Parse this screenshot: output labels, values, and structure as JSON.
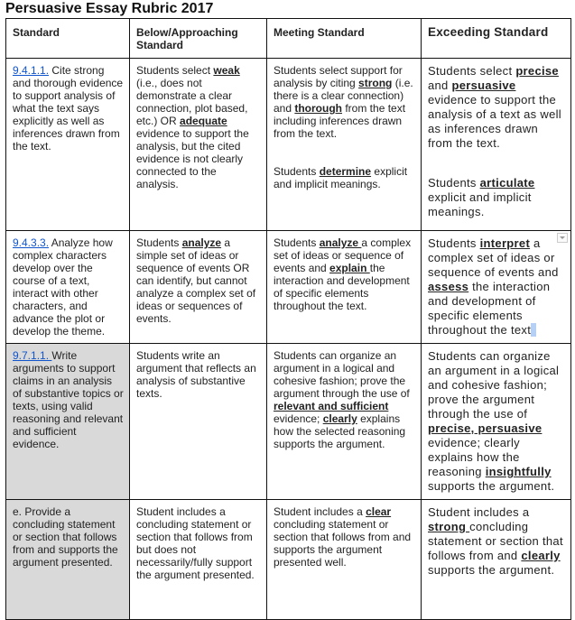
{
  "title": "Persuasive Essay Rubric 2017",
  "headers": [
    "Standard",
    "Below/Approaching Standard",
    "Meeting Standard",
    "Exceeding Standard"
  ],
  "colors": {
    "link": "#1155cc",
    "shaded_cell": "#d9d9d9",
    "selection": "#b6d0f5"
  },
  "rows": [
    {
      "shaded_first": false,
      "cells": [
        [
          [
            {
              "t": "9.4.1.1.",
              "link": true
            },
            {
              "t": " Cite strong and thorough evidence to support analysis of what the text says explicitly as well as inferences drawn from the text."
            }
          ]
        ],
        [
          [
            {
              "t": "Students select "
            },
            {
              "t": "weak",
              "b": true
            },
            {
              "t": " (i.e., does not demonstrate a clear connection, plot based, etc.) OR "
            },
            {
              "t": "adequate",
              "b": true
            },
            {
              "t": " evidence to support the analysis, but the cited evidence is not clearly connected to the analysis."
            }
          ]
        ],
        [
          [
            {
              "t": "Students select support for analysis by citing "
            },
            {
              "t": "strong",
              "b": true
            },
            {
              "t": " (i.e. there is a clear connection) and "
            },
            {
              "t": "thorough",
              "b": true
            },
            {
              "t": " from the text including inferences drawn from the text."
            }
          ],
          [
            {
              "t": "Students "
            },
            {
              "t": "determine",
              "b": true
            },
            {
              "t": " explicit and implicit meanings."
            }
          ]
        ],
        [
          [
            {
              "t": "Students select "
            },
            {
              "t": "precise",
              "b": true
            },
            {
              "t": " and "
            },
            {
              "t": "persuasive ",
              "b": true
            },
            {
              "t": "evidence to support the analysis of a text as well as inferences drawn from the text."
            }
          ],
          [
            {
              "t": "Students "
            },
            {
              "t": "articulate",
              "b": true
            },
            {
              "t": " explicit and implicit meanings."
            }
          ]
        ]
      ]
    },
    {
      "shaded_first": false,
      "cells": [
        [
          [
            {
              "t": "9.4.3.3.",
              "link": true
            },
            {
              "t": " Analyze how complex characters develop over the course of a text, interact with other characters, and advance the plot or develop the theme."
            }
          ]
        ],
        [
          [
            {
              "t": "Students "
            },
            {
              "t": "analyze",
              "b": true
            },
            {
              "t": " a simple set of ideas or sequence of events OR can identify, but cannot analyze a complex set of ideas or sequences of events."
            }
          ]
        ],
        [
          [
            {
              "t": "Students "
            },
            {
              "t": "analyze ",
              "b": true
            },
            {
              "t": "a complex set of ideas or sequence of events and "
            },
            {
              "t": "explain ",
              "b": true
            },
            {
              "t": "the interaction and development of specific elements throughout the text."
            }
          ]
        ],
        [
          [
            {
              "t": "Students "
            },
            {
              "t": "interpret",
              "b": true
            },
            {
              "t": " a complex set of ideas or sequence of events and "
            },
            {
              "t": "assess",
              "b": true
            },
            {
              "t": " the interaction and development of specific elements throughout the text"
            }
          ]
        ]
      ]
    },
    {
      "shaded_first": true,
      "cells": [
        [
          [
            {
              "t": "9.7.1.1. ",
              "link": true
            },
            {
              "t": "Write arguments to support claims in an analysis of substantive topics or texts, using valid reasoning and relevant and sufficient evidence."
            }
          ]
        ],
        [
          [
            {
              "t": "Students write an argument that reflects an analysis of substantive texts."
            }
          ]
        ],
        [
          [
            {
              "t": "Students can organize an argument in a logical and cohesive fashion; prove the argument through the use of "
            },
            {
              "t": "relevant and sufficient",
              "b": true
            },
            {
              "t": " evidence; "
            },
            {
              "t": "clearly",
              "b": true
            },
            {
              "t": " explains how the selected reasoning supports the argument."
            }
          ]
        ],
        [
          [
            {
              "t": "Students can organize an argument in a logical and cohesive fashion; prove the argument through the use of "
            },
            {
              "t": "precise, persuasive ",
              "b": true
            },
            {
              "t": "evidence; clearly explains how the reasoning "
            },
            {
              "t": "insightfully",
              "b": true
            },
            {
              "t": " supports the argument."
            }
          ]
        ]
      ]
    },
    {
      "shaded_first": true,
      "cells": [
        [
          [
            {
              "t": "e. Provide a concluding statement or section that follows from and supports the argument presented."
            }
          ]
        ],
        [
          [
            {
              "t": "Student includes a concluding statement or section that follows from but does not necessarily/fully support the argument presented."
            }
          ]
        ],
        [
          [
            {
              "t": "Student includes a "
            },
            {
              "t": "clear",
              "b": true
            },
            {
              "t": " concluding statement or section that follows from and supports the argument presented well."
            }
          ]
        ],
        [
          [
            {
              "t": "Student includes a "
            },
            {
              "t": "strong ",
              "b": true
            },
            {
              "t": "concluding statement or section that follows from and "
            },
            {
              "t": "clearly",
              "b": true
            },
            {
              "t": " supports the argument."
            }
          ]
        ]
      ]
    }
  ]
}
